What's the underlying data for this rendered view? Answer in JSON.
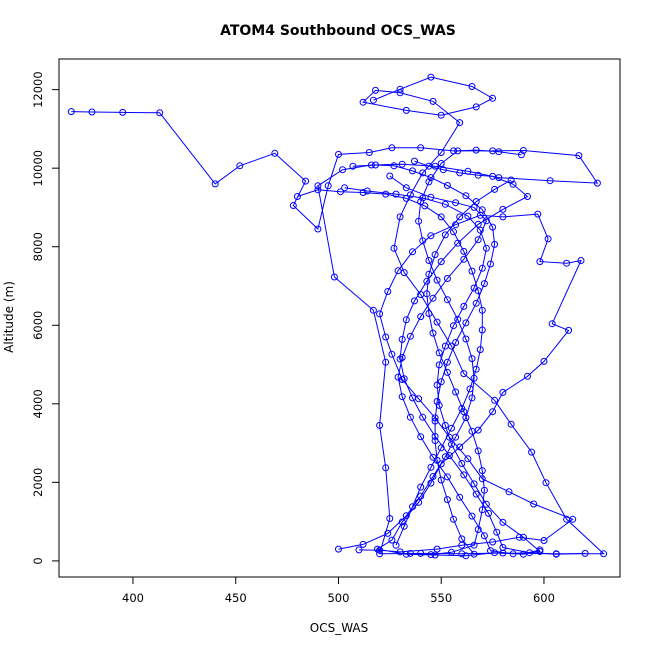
{
  "chart_data": {
    "type": "line",
    "title": "ATOM4 Southbound OCS_WAS",
    "xlabel": "OCS_WAS",
    "ylabel": "Altitude (m)",
    "xlim": [
      364,
      637
    ],
    "ylim": [
      -410,
      12780
    ],
    "xticks": [
      400,
      450,
      500,
      550,
      600
    ],
    "yticks": [
      0,
      2000,
      4000,
      6000,
      8000,
      10000,
      12000
    ],
    "color": "#0000ff",
    "marker": "open-circle",
    "series": [
      {
        "name": "",
        "points": [
          [
            370,
            11440
          ],
          [
            380,
            11430
          ],
          [
            395,
            11420
          ],
          [
            413,
            11410
          ],
          [
            440,
            9600
          ],
          [
            452,
            10060
          ],
          [
            469,
            10380
          ],
          [
            484,
            9670
          ],
          [
            478,
            9050
          ],
          [
            490,
            8450
          ],
          [
            495,
            9550
          ],
          [
            500,
            10350
          ],
          [
            515,
            10400
          ],
          [
            526,
            10520
          ],
          [
            540,
            10520
          ],
          [
            556,
            10440
          ],
          [
            575,
            10440
          ],
          [
            590,
            10450
          ],
          [
            617,
            10320
          ],
          [
            626,
            9620
          ],
          [
            603,
            9680
          ],
          [
            578,
            9760
          ],
          [
            563,
            9920
          ],
          [
            547,
            10050
          ],
          [
            531,
            10100
          ],
          [
            516,
            10080
          ],
          [
            502,
            9960
          ],
          [
            490,
            9550
          ],
          [
            498,
            7230
          ],
          [
            517,
            6380
          ],
          [
            523,
            5060
          ],
          [
            520,
            3450
          ],
          [
            523,
            2370
          ],
          [
            525,
            1080
          ],
          [
            520,
            180
          ],
          [
            540,
            190
          ],
          [
            560,
            180
          ],
          [
            580,
            200
          ],
          [
            606,
            180
          ],
          [
            629,
            180
          ],
          [
            611,
            1060
          ],
          [
            601,
            1990
          ],
          [
            594,
            2770
          ],
          [
            584,
            3480
          ],
          [
            576,
            4090
          ],
          [
            561,
            4770
          ],
          [
            555,
            5470
          ],
          [
            548,
            6080
          ],
          [
            540,
            6780
          ],
          [
            532,
            7340
          ],
          [
            527,
            7960
          ],
          [
            530,
            8760
          ],
          [
            535,
            9320
          ],
          [
            541,
            9880
          ],
          [
            550,
            10400
          ],
          [
            559,
            11160
          ],
          [
            546,
            11700
          ],
          [
            530,
            11920
          ],
          [
            518,
            11980
          ],
          [
            512,
            11680
          ],
          [
            533,
            11470
          ],
          [
            550,
            11350
          ],
          [
            567,
            11560
          ],
          [
            575,
            11780
          ],
          [
            565,
            12080
          ],
          [
            545,
            12320
          ],
          [
            530,
            12010
          ],
          [
            517,
            11730
          ]
        ]
      },
      {
        "name": "",
        "points": [
          [
            510,
            280
          ],
          [
            520,
            270
          ],
          [
            530,
            230
          ],
          [
            548,
            300
          ],
          [
            560,
            400
          ],
          [
            575,
            480
          ],
          [
            588,
            600
          ],
          [
            600,
            520
          ],
          [
            614,
            1060
          ],
          [
            595,
            1450
          ],
          [
            583,
            1760
          ],
          [
            570,
            2090
          ],
          [
            563,
            2600
          ],
          [
            554,
            3150
          ],
          [
            547,
            3640
          ],
          [
            539,
            4130
          ],
          [
            531,
            4620
          ],
          [
            526,
            5260
          ],
          [
            523,
            5700
          ],
          [
            520,
            6290
          ],
          [
            524,
            6860
          ],
          [
            529,
            7390
          ],
          [
            536,
            7870
          ],
          [
            545,
            8280
          ],
          [
            557,
            8560
          ],
          [
            569,
            8800
          ],
          [
            580,
            8760
          ],
          [
            597,
            8830
          ],
          [
            602,
            8200
          ],
          [
            598,
            7620
          ],
          [
            611,
            7580
          ],
          [
            618,
            7650
          ],
          [
            604,
            6040
          ],
          [
            612,
            5870
          ],
          [
            600,
            5080
          ],
          [
            592,
            4700
          ],
          [
            580,
            4290
          ],
          [
            575,
            3800
          ],
          [
            568,
            3330
          ],
          [
            559,
            2900
          ],
          [
            550,
            2470
          ],
          [
            545,
            1980
          ],
          [
            539,
            1490
          ],
          [
            531,
            990
          ],
          [
            526,
            530
          ],
          [
            519,
            300
          ],
          [
            533,
            170
          ],
          [
            547,
            150
          ],
          [
            562,
            130
          ],
          [
            576,
            210
          ],
          [
            590,
            170
          ],
          [
            598,
            280
          ]
        ]
      },
      {
        "name": "",
        "points": [
          [
            525,
            9800
          ],
          [
            533,
            9500
          ],
          [
            545,
            9260
          ],
          [
            557,
            9120
          ],
          [
            566,
            9000
          ],
          [
            572,
            8660
          ],
          [
            568,
            8180
          ],
          [
            561,
            7680
          ],
          [
            553,
            7190
          ],
          [
            546,
            6690
          ],
          [
            540,
            6220
          ],
          [
            535,
            5720
          ],
          [
            531,
            5180
          ],
          [
            529,
            4680
          ],
          [
            531,
            4180
          ],
          [
            535,
            3660
          ],
          [
            540,
            3160
          ],
          [
            546,
            2640
          ],
          [
            553,
            2140
          ],
          [
            559,
            1620
          ],
          [
            565,
            1140
          ],
          [
            571,
            640
          ],
          [
            574,
            260
          ],
          [
            585,
            180
          ],
          [
            598,
            240
          ],
          [
            590,
            600
          ],
          [
            580,
            980
          ],
          [
            572,
            1440
          ],
          [
            566,
            1960
          ],
          [
            560,
            2480
          ],
          [
            555,
            2970
          ],
          [
            552,
            3450
          ],
          [
            549,
            3960
          ],
          [
            548,
            4480
          ],
          [
            549,
            4990
          ],
          [
            552,
            5470
          ],
          [
            556,
            5990
          ],
          [
            561,
            6480
          ],
          [
            566,
            6950
          ],
          [
            570,
            7450
          ],
          [
            572,
            7960
          ],
          [
            569,
            8420
          ],
          [
            563,
            8780
          ],
          [
            552,
            9080
          ],
          [
            541,
            9240
          ],
          [
            528,
            9340
          ],
          [
            514,
            9420
          ],
          [
            503,
            9500
          ]
        ]
      },
      {
        "name": "",
        "points": [
          [
            537,
            10180
          ],
          [
            544,
            10050
          ],
          [
            551,
            9960
          ],
          [
            559,
            9880
          ],
          [
            568,
            9820
          ],
          [
            575,
            9790
          ],
          [
            585,
            9590
          ],
          [
            592,
            9280
          ],
          [
            580,
            8950
          ],
          [
            568,
            8570
          ],
          [
            558,
            8090
          ],
          [
            550,
            7620
          ],
          [
            543,
            7120
          ],
          [
            537,
            6620
          ],
          [
            533,
            6140
          ],
          [
            531,
            5640
          ],
          [
            530,
            5140
          ],
          [
            532,
            4640
          ],
          [
            536,
            4150
          ],
          [
            541,
            3660
          ],
          [
            547,
            3170
          ],
          [
            554,
            2680
          ],
          [
            561,
            2190
          ],
          [
            567,
            1700
          ],
          [
            573,
            1210
          ],
          [
            577,
            730
          ],
          [
            580,
            340
          ],
          [
            593,
            210
          ],
          [
            606,
            170
          ],
          [
            620,
            190
          ]
        ]
      },
      {
        "name": "",
        "points": [
          [
            566,
            170
          ],
          [
            560,
            560
          ],
          [
            556,
            1060
          ],
          [
            553,
            1560
          ],
          [
            550,
            2060
          ],
          [
            548,
            2560
          ],
          [
            547,
            3060
          ],
          [
            547,
            3560
          ],
          [
            548,
            4060
          ],
          [
            550,
            4560
          ],
          [
            553,
            5060
          ],
          [
            557,
            5560
          ],
          [
            562,
            6060
          ],
          [
            567,
            6560
          ],
          [
            571,
            7060
          ],
          [
            574,
            7560
          ],
          [
            576,
            8060
          ],
          [
            575,
            8500
          ],
          [
            570,
            8940
          ],
          [
            562,
            9300
          ],
          [
            553,
            9560
          ],
          [
            545,
            9760
          ],
          [
            536,
            9930
          ],
          [
            527,
            10060
          ],
          [
            518,
            10080
          ],
          [
            507,
            10050
          ]
        ]
      },
      {
        "name": "",
        "points": [
          [
            528,
            400
          ],
          [
            532,
            880
          ],
          [
            536,
            1380
          ],
          [
            540,
            1880
          ],
          [
            545,
            2380
          ],
          [
            550,
            2880
          ],
          [
            555,
            3380
          ],
          [
            560,
            3880
          ],
          [
            564,
            4380
          ],
          [
            567,
            4880
          ],
          [
            569,
            5380
          ],
          [
            570,
            5880
          ],
          [
            570,
            6380
          ],
          [
            568,
            6880
          ],
          [
            565,
            7380
          ],
          [
            561,
            7880
          ],
          [
            556,
            8380
          ],
          [
            550,
            8760
          ],
          [
            542,
            9040
          ],
          [
            533,
            9230
          ],
          [
            523,
            9340
          ],
          [
            512,
            9380
          ],
          [
            501,
            9400
          ],
          [
            490,
            9450
          ],
          [
            480,
            9280
          ]
        ]
      },
      {
        "name": "",
        "points": [
          [
            584,
            9700
          ],
          [
            576,
            9460
          ],
          [
            567,
            9150
          ],
          [
            559,
            8760
          ],
          [
            552,
            8300
          ],
          [
            547,
            7800
          ],
          [
            544,
            7300
          ],
          [
            543,
            6800
          ],
          [
            544,
            6300
          ],
          [
            546,
            5800
          ],
          [
            549,
            5300
          ],
          [
            553,
            4800
          ],
          [
            557,
            4300
          ],
          [
            561,
            3800
          ],
          [
            565,
            3300
          ],
          [
            568,
            2800
          ],
          [
            570,
            2300
          ],
          [
            571,
            1800
          ],
          [
            570,
            1300
          ],
          [
            568,
            800
          ],
          [
            566,
            400
          ],
          [
            555,
            220
          ],
          [
            545,
            160
          ],
          [
            535,
            190
          ]
        ]
      },
      {
        "name": "",
        "points": [
          [
            500,
            300
          ],
          [
            512,
            420
          ],
          [
            524,
            700
          ],
          [
            533,
            1150
          ],
          [
            540,
            1650
          ],
          [
            546,
            2150
          ],
          [
            552,
            2650
          ],
          [
            557,
            3150
          ],
          [
            562,
            3650
          ],
          [
            565,
            4150
          ],
          [
            566,
            4650
          ],
          [
            565,
            5150
          ],
          [
            562,
            5650
          ],
          [
            558,
            6150
          ],
          [
            553,
            6650
          ],
          [
            548,
            7150
          ],
          [
            544,
            7650
          ],
          [
            541,
            8150
          ],
          [
            539,
            8650
          ],
          [
            540,
            9150
          ],
          [
            544,
            9650
          ],
          [
            550,
            10120
          ],
          [
            558,
            10440
          ],
          [
            567,
            10460
          ],
          [
            578,
            10420
          ],
          [
            589,
            10340
          ]
        ]
      }
    ]
  }
}
